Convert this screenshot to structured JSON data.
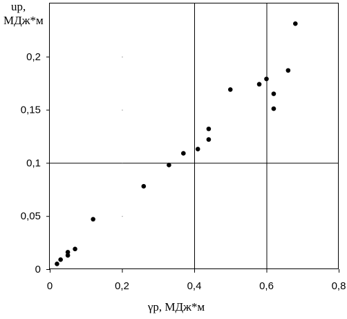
{
  "chart_data": {
    "type": "scatter",
    "title": "",
    "xlabel": "γр, МДж*м",
    "ylabel_line1": "uр,",
    "ylabel_line2": "МДж*м",
    "xlim": [
      0,
      0.8
    ],
    "ylim": [
      0,
      0.25
    ],
    "x_ticks": [
      0,
      0.2,
      0.4,
      0.6,
      0.8
    ],
    "x_tick_labels": [
      "0",
      "0,2",
      "0,4",
      "0,6",
      "0,8"
    ],
    "y_ticks": [
      0,
      0.05,
      0.1,
      0.15,
      0.2
    ],
    "y_tick_labels": [
      "0",
      "0,05",
      "0,1",
      "0,15",
      "0,2"
    ],
    "grid_x": [
      0.4,
      0.6
    ],
    "grid_y": [
      0.1
    ],
    "faint_grid_x": [
      0.2
    ],
    "legend": "none",
    "marker_color": "#000000",
    "points": [
      {
        "x": 0.02,
        "y": 0.005
      },
      {
        "x": 0.03,
        "y": 0.009
      },
      {
        "x": 0.05,
        "y": 0.013
      },
      {
        "x": 0.05,
        "y": 0.016
      },
      {
        "x": 0.07,
        "y": 0.019
      },
      {
        "x": 0.12,
        "y": 0.047
      },
      {
        "x": 0.26,
        "y": 0.078
      },
      {
        "x": 0.33,
        "y": 0.098
      },
      {
        "x": 0.37,
        "y": 0.109
      },
      {
        "x": 0.41,
        "y": 0.113
      },
      {
        "x": 0.44,
        "y": 0.122
      },
      {
        "x": 0.44,
        "y": 0.132
      },
      {
        "x": 0.5,
        "y": 0.169
      },
      {
        "x": 0.58,
        "y": 0.174
      },
      {
        "x": 0.6,
        "y": 0.179
      },
      {
        "x": 0.62,
        "y": 0.151
      },
      {
        "x": 0.62,
        "y": 0.165
      },
      {
        "x": 0.66,
        "y": 0.187
      },
      {
        "x": 0.68,
        "y": 0.231
      }
    ]
  }
}
